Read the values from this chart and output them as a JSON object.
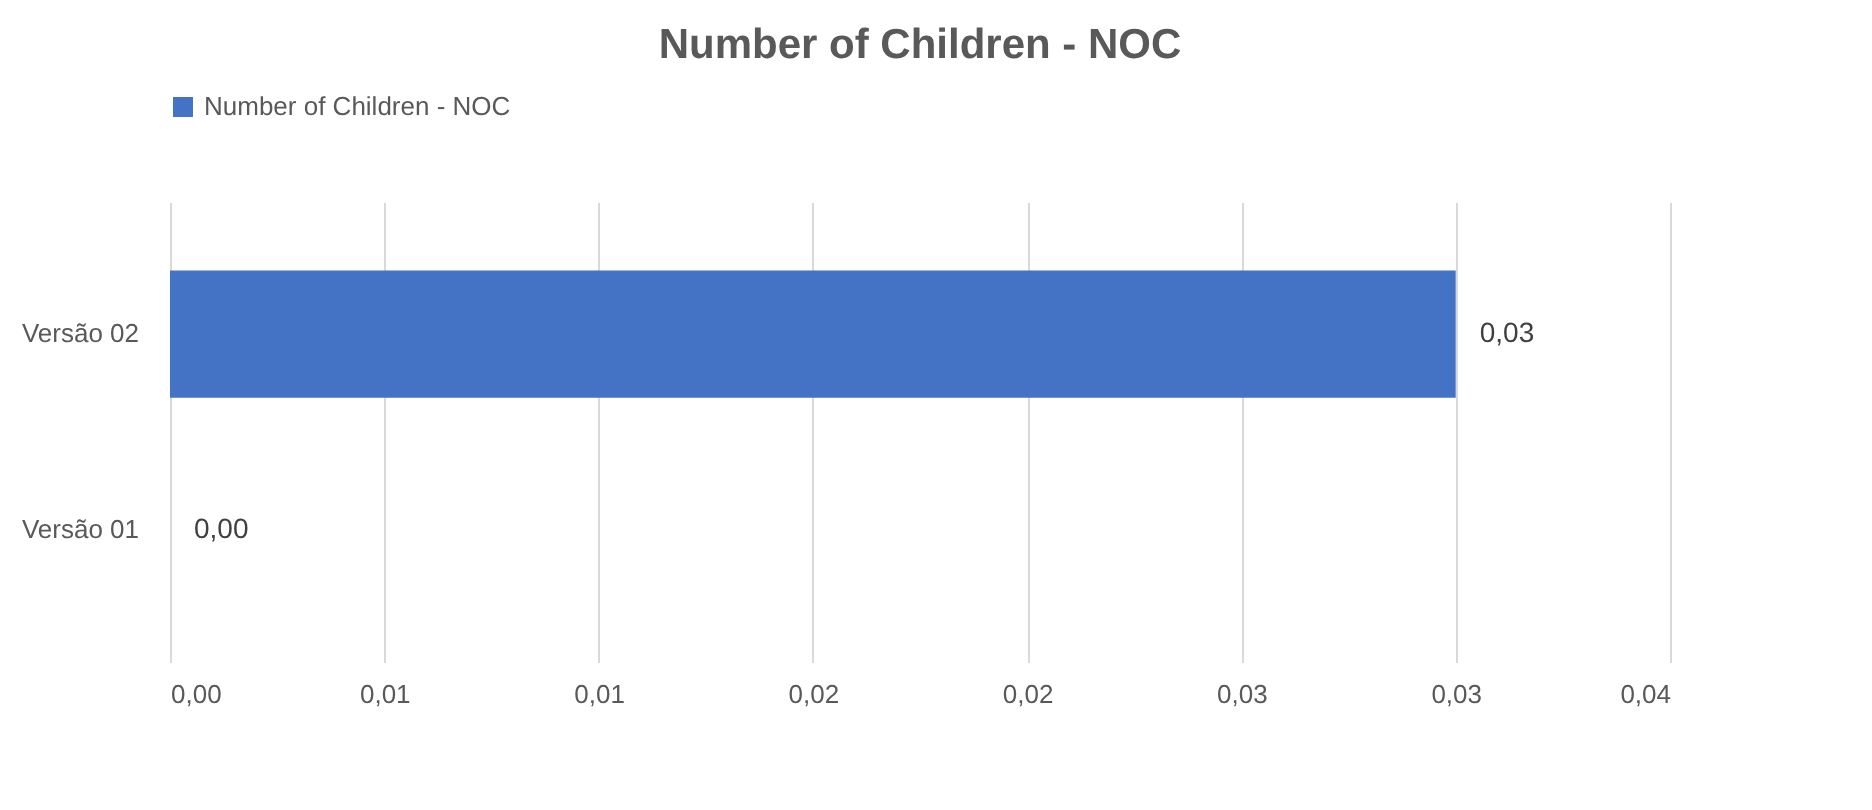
{
  "chart_data": {
    "type": "bar",
    "title": "Number of Children - NOC",
    "orientation": "horizontal",
    "categories": [
      "Versão 02",
      "Versão 01"
    ],
    "series": [
      {
        "name": "Number of Children - NOC",
        "color": "#4472c4",
        "values": [
          0.03,
          0
        ],
        "value_labels": [
          "0,03",
          "0,00"
        ]
      }
    ],
    "xlim": [
      0,
      0.035
    ],
    "xticks": [
      {
        "value": 0,
        "label": "0,00"
      },
      {
        "value": 0.005,
        "label": "0,01"
      },
      {
        "value": 0.01,
        "label": "0,01"
      },
      {
        "value": 0.015,
        "label": "0,02"
      },
      {
        "value": 0.02,
        "label": "0,02"
      },
      {
        "value": 0.025,
        "label": "0,03"
      },
      {
        "value": 0.03,
        "label": "0,03"
      },
      {
        "value": 0.035,
        "label": "0,04"
      }
    ],
    "grid": "x",
    "legend": "top"
  }
}
